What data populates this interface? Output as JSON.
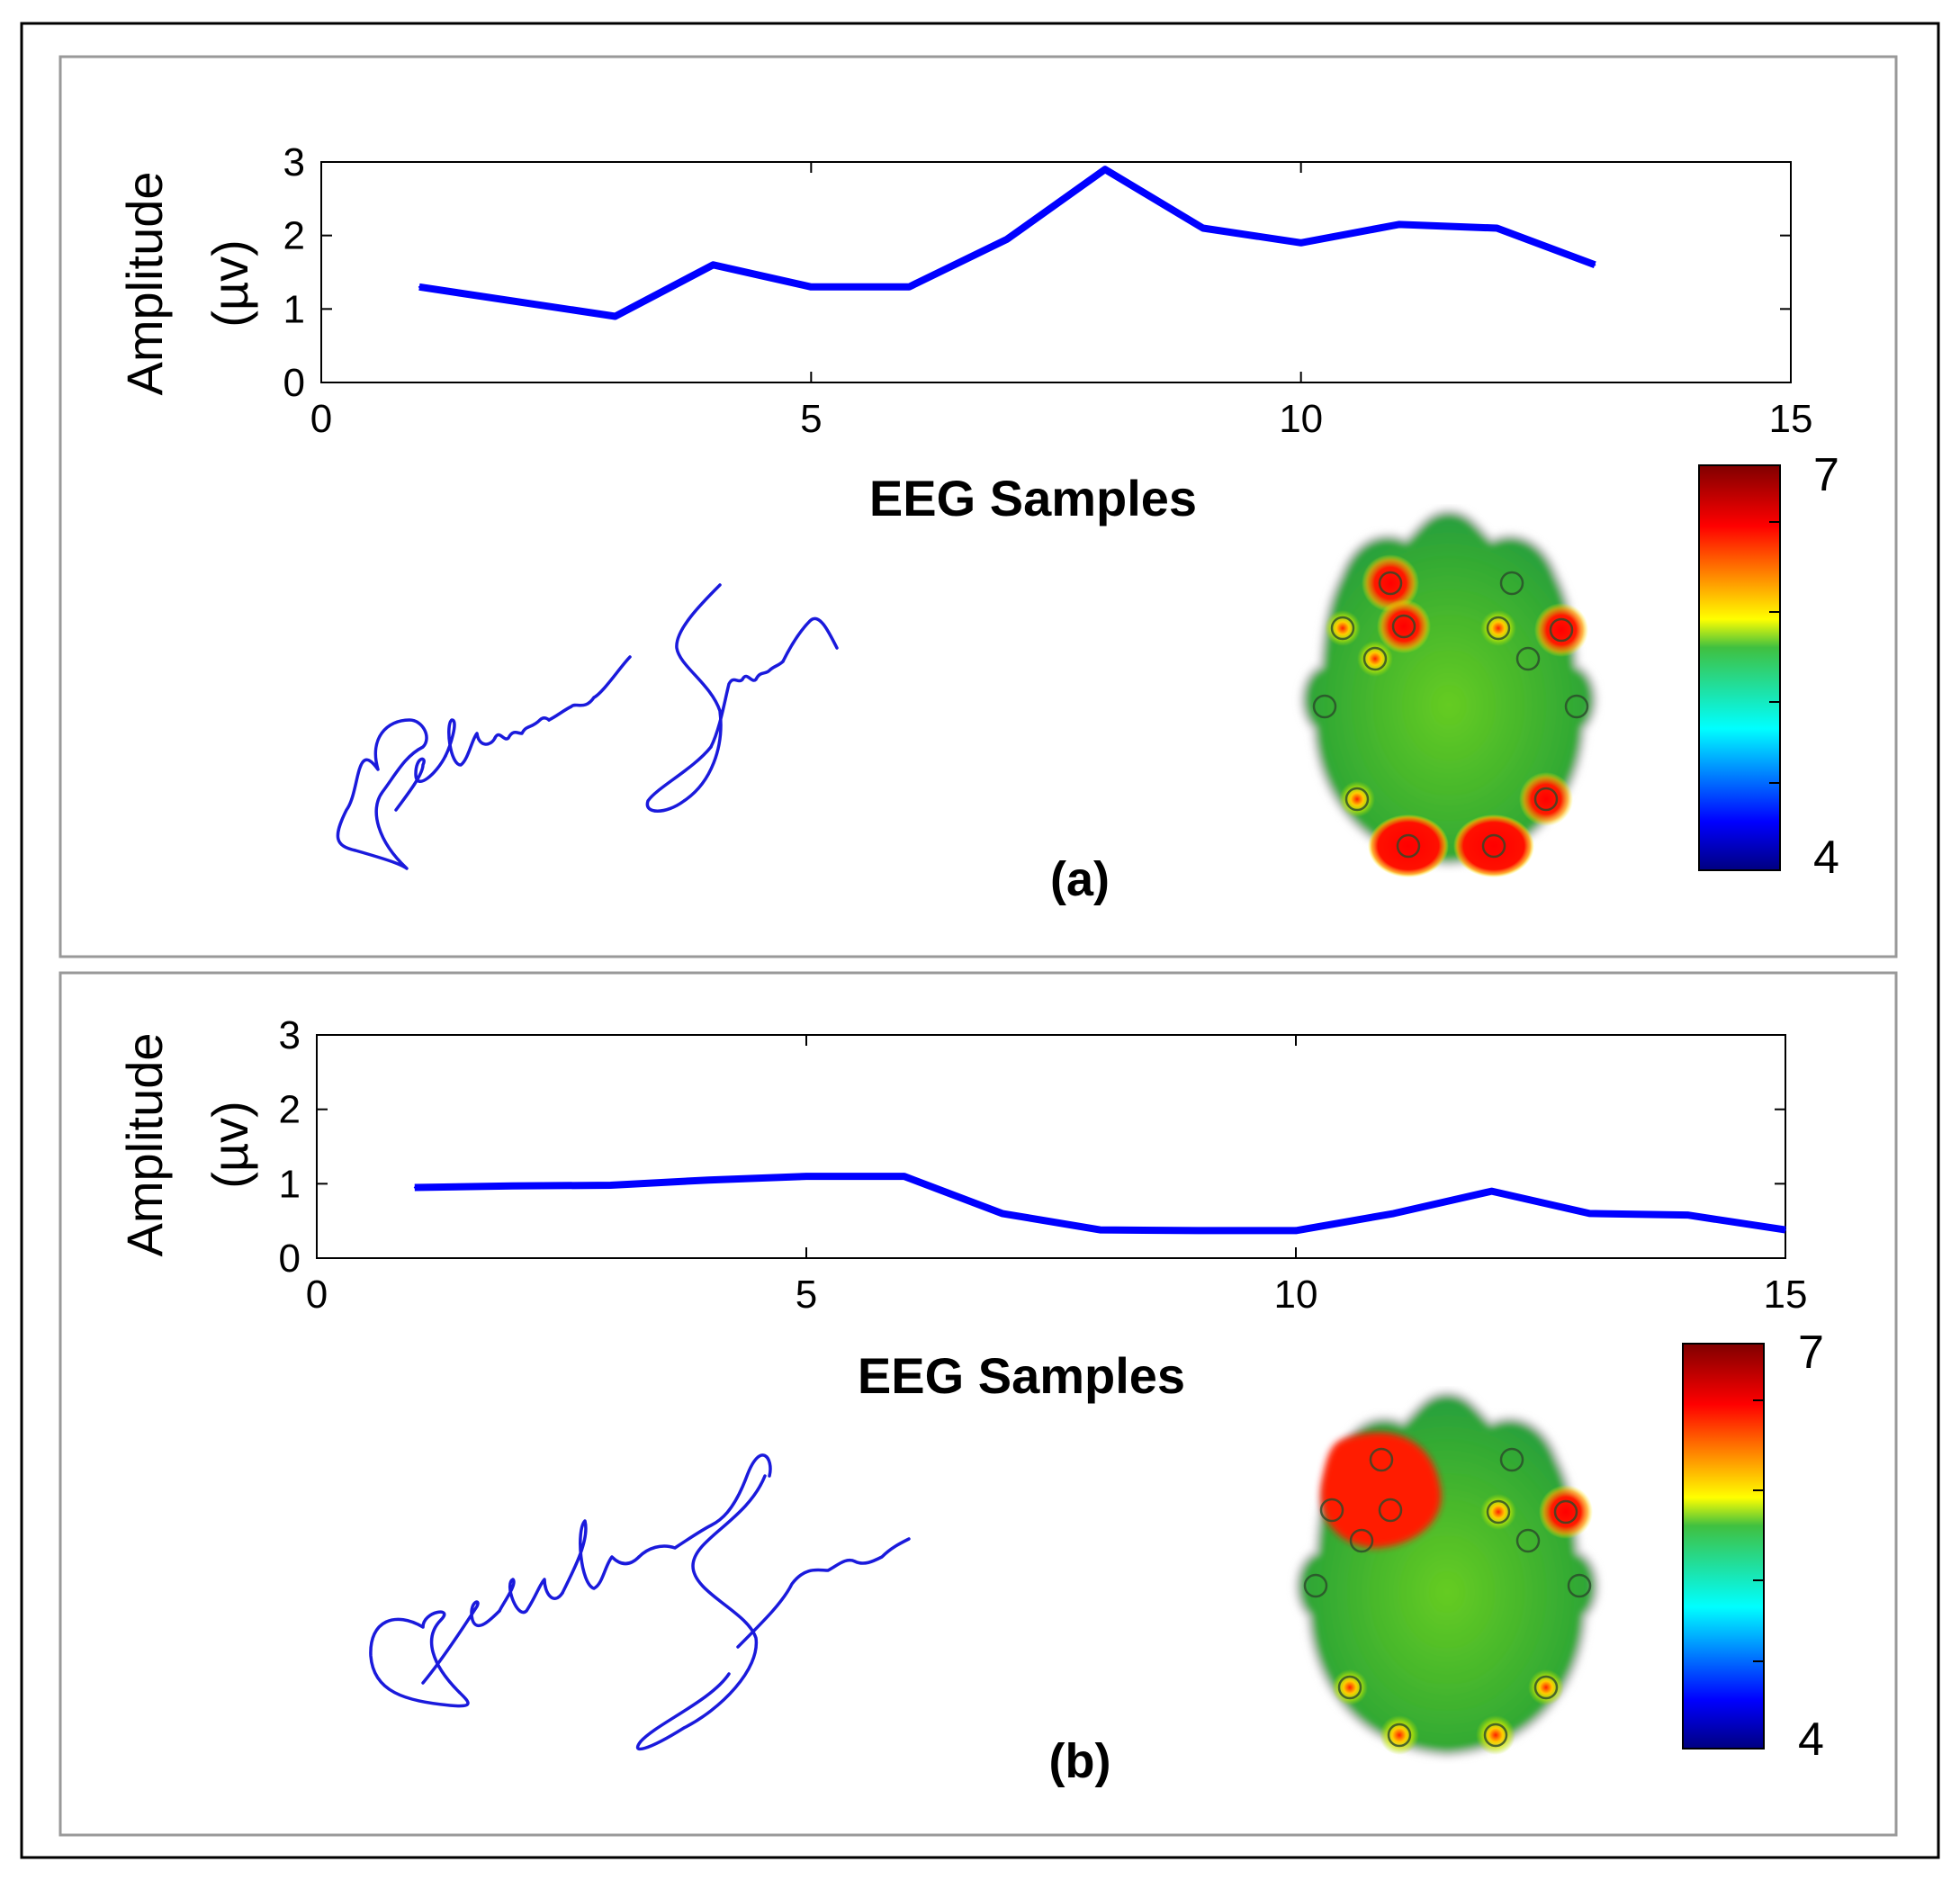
{
  "figure": {
    "panels": [
      {
        "label": "(a)",
        "signature": "Rajkumar Saini",
        "colorbar": {
          "max_label": "7",
          "min_label": "4"
        }
      },
      {
        "label": "(b)",
        "signature": "Rajkumar Saini",
        "colorbar": {
          "max_label": "7",
          "min_label": "4"
        }
      }
    ]
  },
  "chart_data": [
    {
      "type": "line",
      "title": "",
      "xlabel": "EEG Samples",
      "ylabel": [
        "Amplitude",
        "(µv)"
      ],
      "xlim": [
        0,
        15
      ],
      "ylim": [
        0,
        3
      ],
      "xticks": [
        "0",
        "5",
        "10",
        "15"
      ],
      "yticks": [
        "0",
        "1",
        "2",
        "3"
      ],
      "grid": false,
      "series": [
        {
          "name": "EEG",
          "color": "#0000ff",
          "x": [
            1,
            2,
            3,
            4,
            5,
            6,
            7,
            8,
            9,
            10,
            11,
            12,
            13
          ],
          "y": [
            1.3,
            1.1,
            0.9,
            1.6,
            1.3,
            1.3,
            1.95,
            2.9,
            2.1,
            1.9,
            2.15,
            2.1,
            1.6
          ]
        }
      ]
    },
    {
      "type": "line",
      "title": "",
      "xlabel": "EEG Samples",
      "ylabel": [
        "Amplitude",
        "(µv)"
      ],
      "xlim": [
        0,
        15
      ],
      "ylim": [
        0,
        3
      ],
      "xticks": [
        "0",
        "5",
        "10",
        "15"
      ],
      "yticks": [
        "0",
        "1",
        "2",
        "3"
      ],
      "grid": false,
      "series": [
        {
          "name": "EEG",
          "color": "#0000ff",
          "x": [
            1,
            2,
            3,
            4,
            5,
            6,
            7,
            8,
            9,
            10,
            11,
            12,
            13,
            14,
            15
          ],
          "y": [
            0.95,
            0.97,
            0.98,
            1.05,
            1.1,
            1.1,
            0.6,
            0.38,
            0.37,
            0.37,
            0.6,
            0.9,
            0.6,
            0.58,
            0.38
          ]
        }
      ]
    }
  ],
  "colors": {
    "line": "#0000ff",
    "signature": "#1a1adc",
    "frame": "#000000",
    "panel_border": "#999999"
  }
}
